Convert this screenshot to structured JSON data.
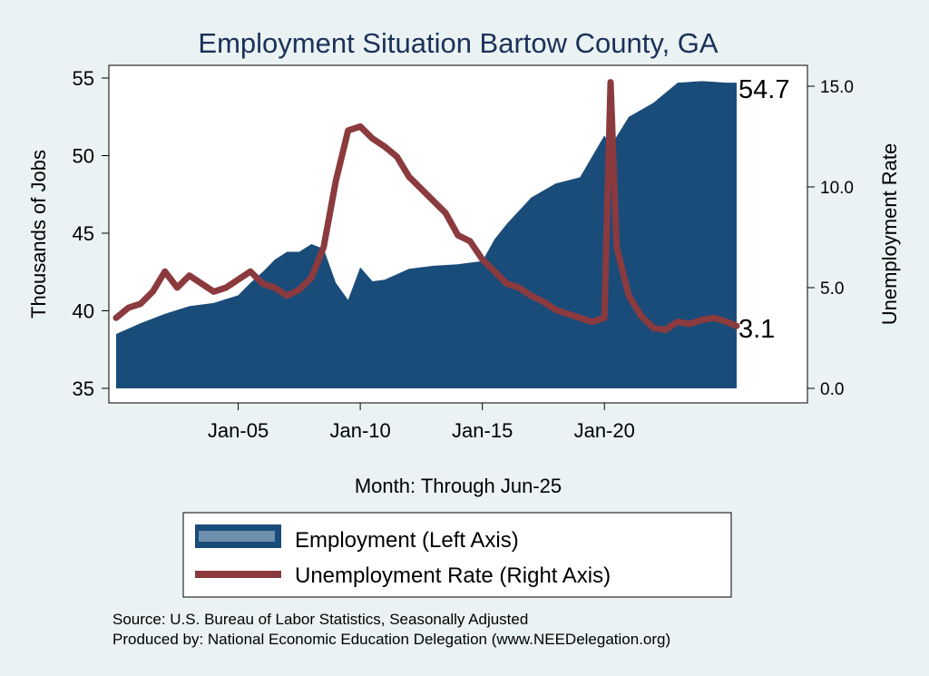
{
  "chart_data": {
    "type": "area+line",
    "title": "Employment Situation Bartow  County, GA",
    "xlabel": "Month: Through Jun-25",
    "ylabel_left": "Thousands of Jobs",
    "ylabel_right": "Unemployment Rate",
    "xticks": [
      "Jan-05",
      "Jan-10",
      "Jan-15",
      "Jan-20"
    ],
    "yticks_left": [
      "35",
      "40",
      "45",
      "50",
      "55"
    ],
    "yticks_right": [
      "0.0",
      "5.0",
      "10.0",
      "15.0"
    ],
    "ylim_left": [
      35,
      56
    ],
    "ylim_right": [
      0,
      16
    ],
    "x_range": [
      "Jan-00",
      "Jun-25"
    ],
    "end_labels": {
      "employment": "54.7",
      "unemployment": "3.1"
    },
    "colors": {
      "employment": "#1a4c7a",
      "unemployment": "#8b3a3e",
      "background": "#eaf2f3",
      "plot_bg": "#ffffff"
    },
    "series": [
      {
        "name": "Employment (Left Axis)",
        "kind": "area",
        "points": [
          [
            "Jan-00",
            38.5
          ],
          [
            "Jan-01",
            39.2
          ],
          [
            "Jan-02",
            39.8
          ],
          [
            "Jan-03",
            40.3
          ],
          [
            "Jan-04",
            40.5
          ],
          [
            "Jan-05",
            41.0
          ],
          [
            "Jul-05",
            41.8
          ],
          [
            "Jan-06",
            42.5
          ],
          [
            "Jul-06",
            43.3
          ],
          [
            "Jan-07",
            43.8
          ],
          [
            "Jul-07",
            43.8
          ],
          [
            "Jan-08",
            44.3
          ],
          [
            "Jul-08",
            44.0
          ],
          [
            "Jan-09",
            41.8
          ],
          [
            "Jul-09",
            40.7
          ],
          [
            "Jan-10",
            42.8
          ],
          [
            "Jul-10",
            41.9
          ],
          [
            "Jan-11",
            42.0
          ],
          [
            "Jan-12",
            42.7
          ],
          [
            "Jan-13",
            42.9
          ],
          [
            "Jan-14",
            43.0
          ],
          [
            "Jan-15",
            43.2
          ],
          [
            "Jul-15",
            44.6
          ],
          [
            "Jan-16",
            45.6
          ],
          [
            "Jan-17",
            47.3
          ],
          [
            "Jan-18",
            48.2
          ],
          [
            "Jan-19",
            48.6
          ],
          [
            "Jan-20",
            51.3
          ],
          [
            "Apr-20",
            50.6
          ],
          [
            "Jan-21",
            52.5
          ],
          [
            "Jan-22",
            53.4
          ],
          [
            "Jan-23",
            54.7
          ],
          [
            "Jan-24",
            54.8
          ],
          [
            "Jan-25",
            54.7
          ],
          [
            "Jun-25",
            54.7
          ]
        ]
      },
      {
        "name": "Unemployment Rate (Right Axis)",
        "kind": "line",
        "points": [
          [
            "Jan-00",
            3.5
          ],
          [
            "Jul-00",
            4.0
          ],
          [
            "Jan-01",
            4.2
          ],
          [
            "Jul-01",
            4.8
          ],
          [
            "Jan-02",
            5.8
          ],
          [
            "Jul-02",
            5.0
          ],
          [
            "Jan-03",
            5.6
          ],
          [
            "Jul-03",
            5.2
          ],
          [
            "Jan-04",
            4.8
          ],
          [
            "Jul-04",
            5.0
          ],
          [
            "Jan-05",
            5.4
          ],
          [
            "Jul-05",
            5.8
          ],
          [
            "Jan-06",
            5.2
          ],
          [
            "Jul-06",
            5.0
          ],
          [
            "Jan-07",
            4.6
          ],
          [
            "Jul-07",
            4.9
          ],
          [
            "Jan-08",
            5.5
          ],
          [
            "Jul-08",
            7.0
          ],
          [
            "Jan-09",
            10.3
          ],
          [
            "Jul-09",
            12.8
          ],
          [
            "Jan-10",
            13.0
          ],
          [
            "Jul-10",
            12.4
          ],
          [
            "Jan-11",
            12.0
          ],
          [
            "Jul-11",
            11.5
          ],
          [
            "Jan-12",
            10.5
          ],
          [
            "Jul-12",
            9.9
          ],
          [
            "Jan-13",
            9.3
          ],
          [
            "Jul-13",
            8.7
          ],
          [
            "Jan-14",
            7.6
          ],
          [
            "Jul-14",
            7.3
          ],
          [
            "Jan-15",
            6.4
          ],
          [
            "Jul-15",
            5.8
          ],
          [
            "Jan-16",
            5.2
          ],
          [
            "Jul-16",
            5.0
          ],
          [
            "Jan-17",
            4.6
          ],
          [
            "Jul-17",
            4.3
          ],
          [
            "Jan-18",
            3.9
          ],
          [
            "Jul-18",
            3.7
          ],
          [
            "Jan-19",
            3.5
          ],
          [
            "Jul-19",
            3.3
          ],
          [
            "Jan-20",
            3.5
          ],
          [
            "Apr-20",
            15.2
          ],
          [
            "Jul-20",
            7.0
          ],
          [
            "Jan-21",
            4.6
          ],
          [
            "Jul-21",
            3.6
          ],
          [
            "Jan-22",
            3.0
          ],
          [
            "Jul-22",
            2.9
          ],
          [
            "Jan-23",
            3.3
          ],
          [
            "Jul-23",
            3.2
          ],
          [
            "Jan-24",
            3.4
          ],
          [
            "Jul-24",
            3.5
          ],
          [
            "Jan-25",
            3.3
          ],
          [
            "Jun-25",
            3.1
          ]
        ]
      }
    ],
    "legend": [
      "Employment (Left Axis)",
      "Unemployment Rate (Right Axis)"
    ],
    "source_lines": [
      "Source: U.S. Bureau of Labor Statistics, Seasonally Adjusted",
      "Produced by: National Economic Education Delegation (www.NEEDelegation.org)"
    ]
  }
}
